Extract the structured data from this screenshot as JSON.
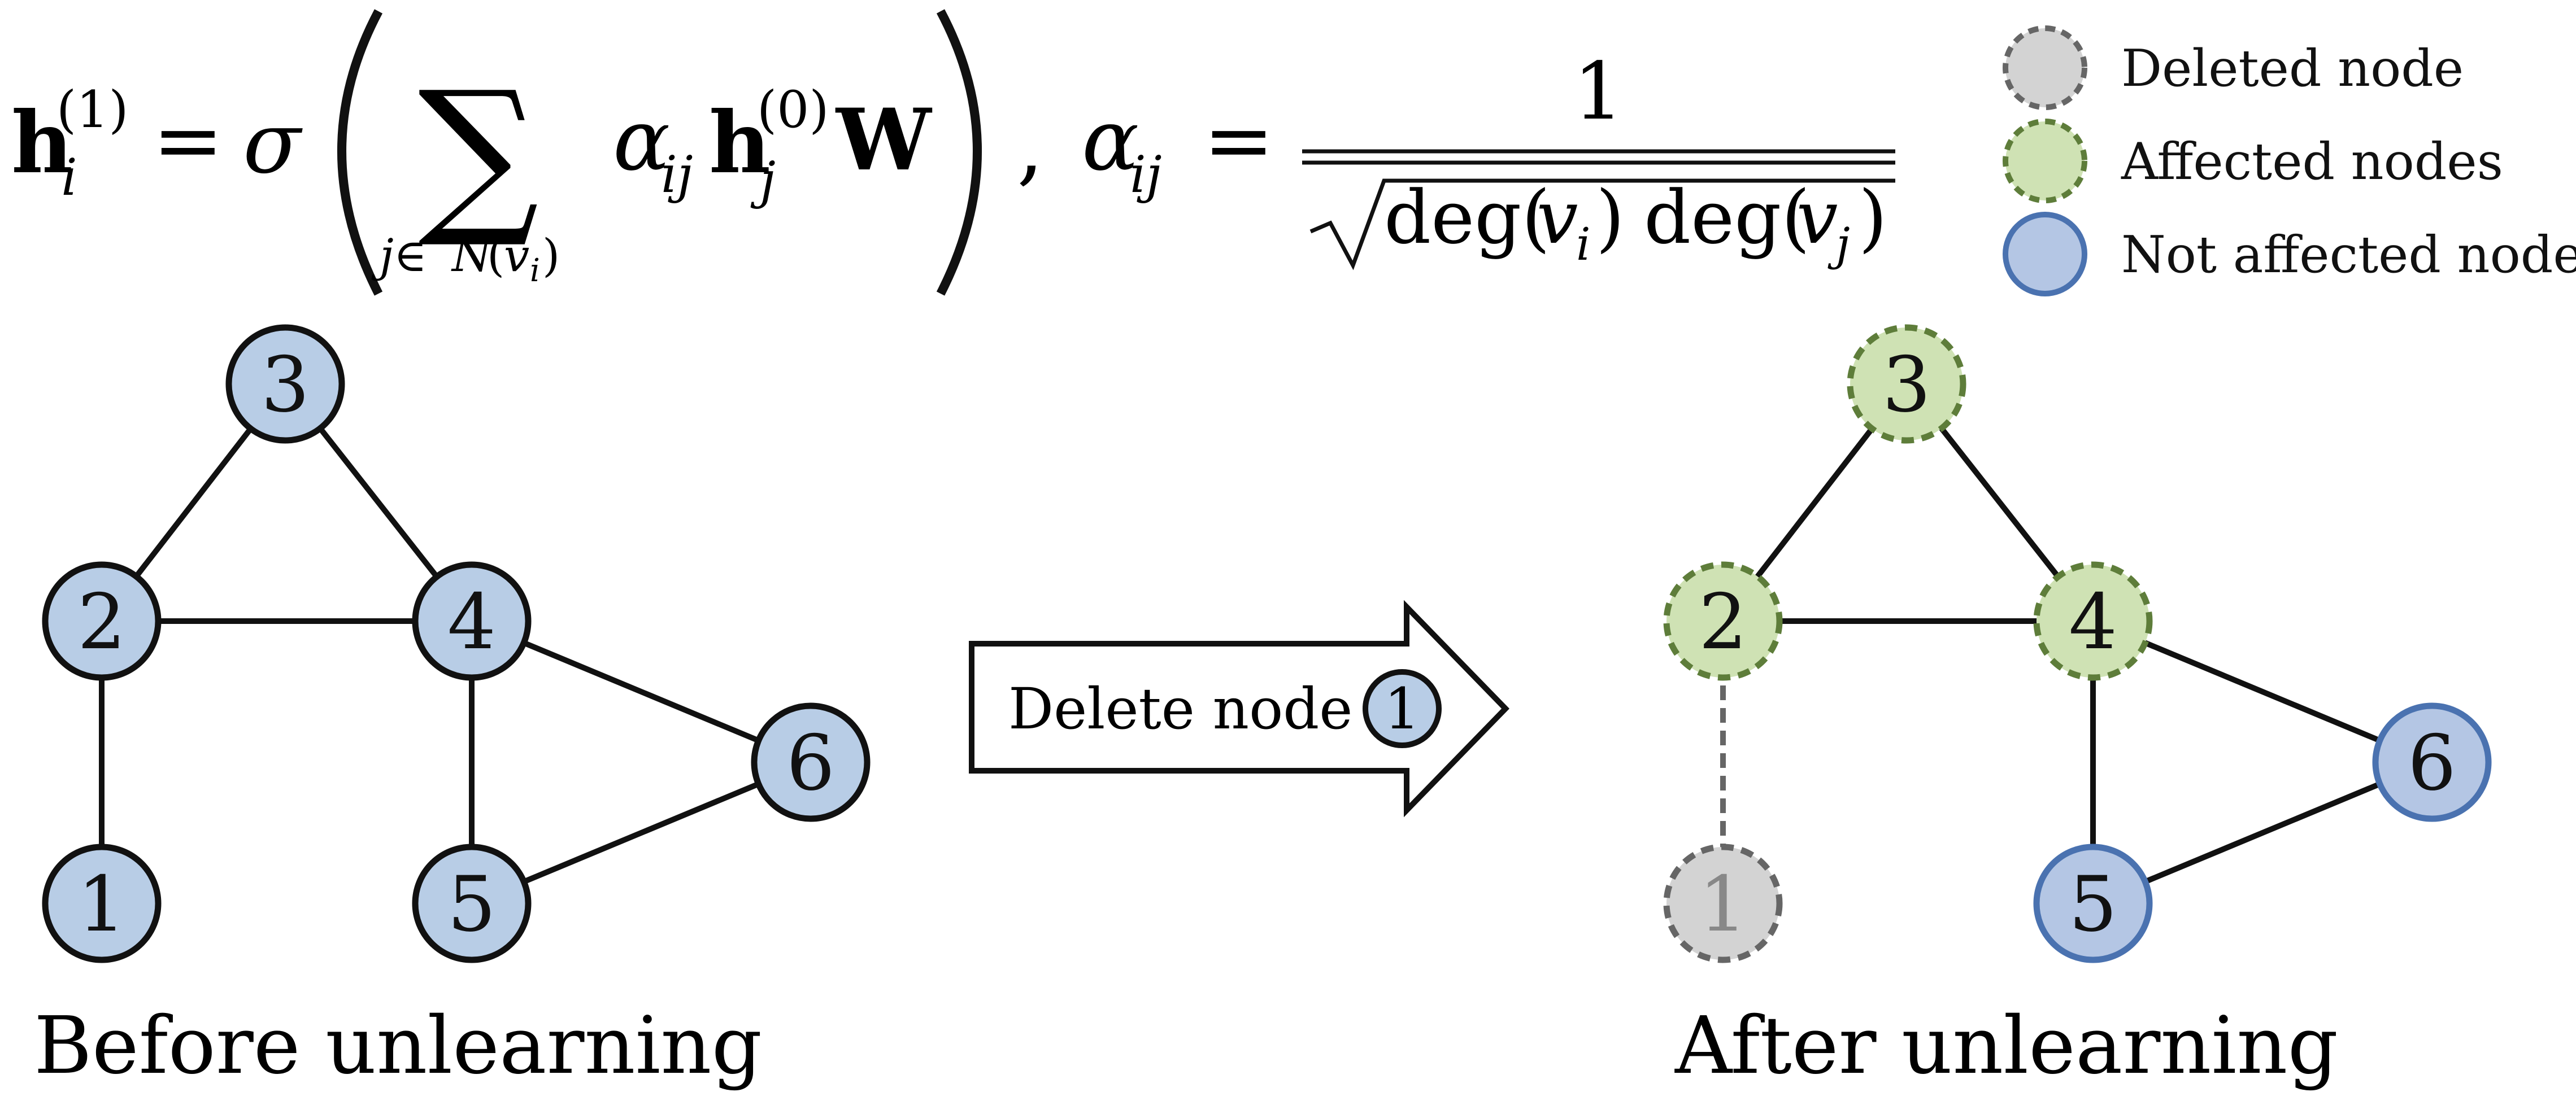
{
  "formula": {
    "lhs_h": "h",
    "lhs_sub": "i",
    "lhs_sup": "(1)",
    "equals": "=",
    "sigma": "σ",
    "sum": "∑",
    "sum_sub_j": "j∈",
    "sum_sub_N": "N",
    "sum_sub_paren_open": "(",
    "sum_sub_v": "v",
    "sum_sub_vi": "i",
    "sum_sub_paren_close": ")",
    "alpha": "α",
    "alpha_sub": "ij",
    "h_j": "h",
    "h_j_sub": "j",
    "h_j_sup": "(0)",
    "W": "W",
    "comma": ",",
    "alpha2": "α",
    "alpha2_sub": "ij",
    "equals2": "=",
    "numerator": "1",
    "deg1": "deg(",
    "v_i": "v",
    "v_i_sub": "i",
    "close1": ")",
    "deg2": "deg(",
    "v_j": "v",
    "v_j_sub": "j",
    "close2": ")"
  },
  "legend": {
    "items": [
      {
        "label": "Deleted node"
      },
      {
        "label": "Affected nodes"
      },
      {
        "label": "Not affected nodes"
      }
    ]
  },
  "colors": {
    "deleted_fill": "#d3d3d3",
    "deleted_stroke": "#666666",
    "affected_fill": "#cfe2b4",
    "affected_stroke": "#5e7d3a",
    "not_affected_fill": "#b4c6e4",
    "not_affected_stroke": "#4a72b0",
    "before_fill": "#b8cde6",
    "edge": "#111111"
  },
  "before_graph": {
    "caption": "Before unlearning",
    "nodes": [
      {
        "id": "1",
        "label": "1"
      },
      {
        "id": "2",
        "label": "2"
      },
      {
        "id": "3",
        "label": "3"
      },
      {
        "id": "4",
        "label": "4"
      },
      {
        "id": "5",
        "label": "5"
      },
      {
        "id": "6",
        "label": "6"
      }
    ],
    "edges": [
      [
        "1",
        "2"
      ],
      [
        "2",
        "3"
      ],
      [
        "2",
        "4"
      ],
      [
        "3",
        "4"
      ],
      [
        "4",
        "5"
      ],
      [
        "4",
        "6"
      ],
      [
        "5",
        "6"
      ]
    ]
  },
  "after_graph": {
    "caption": "After unlearning",
    "nodes": [
      {
        "id": "1",
        "label": "1",
        "state": "deleted"
      },
      {
        "id": "2",
        "label": "2",
        "state": "affected"
      },
      {
        "id": "3",
        "label": "3",
        "state": "affected"
      },
      {
        "id": "4",
        "label": "4",
        "state": "affected"
      },
      {
        "id": "5",
        "label": "5",
        "state": "not_affected"
      },
      {
        "id": "6",
        "label": "6",
        "state": "not_affected"
      }
    ],
    "edges": [
      [
        "2",
        "3"
      ],
      [
        "2",
        "4"
      ],
      [
        "3",
        "4"
      ],
      [
        "4",
        "5"
      ],
      [
        "4",
        "6"
      ],
      [
        "5",
        "6"
      ]
    ],
    "deleted_edges": [
      [
        "1",
        "2"
      ]
    ]
  },
  "arrow": {
    "label": "Delete node",
    "node_label": "1"
  }
}
